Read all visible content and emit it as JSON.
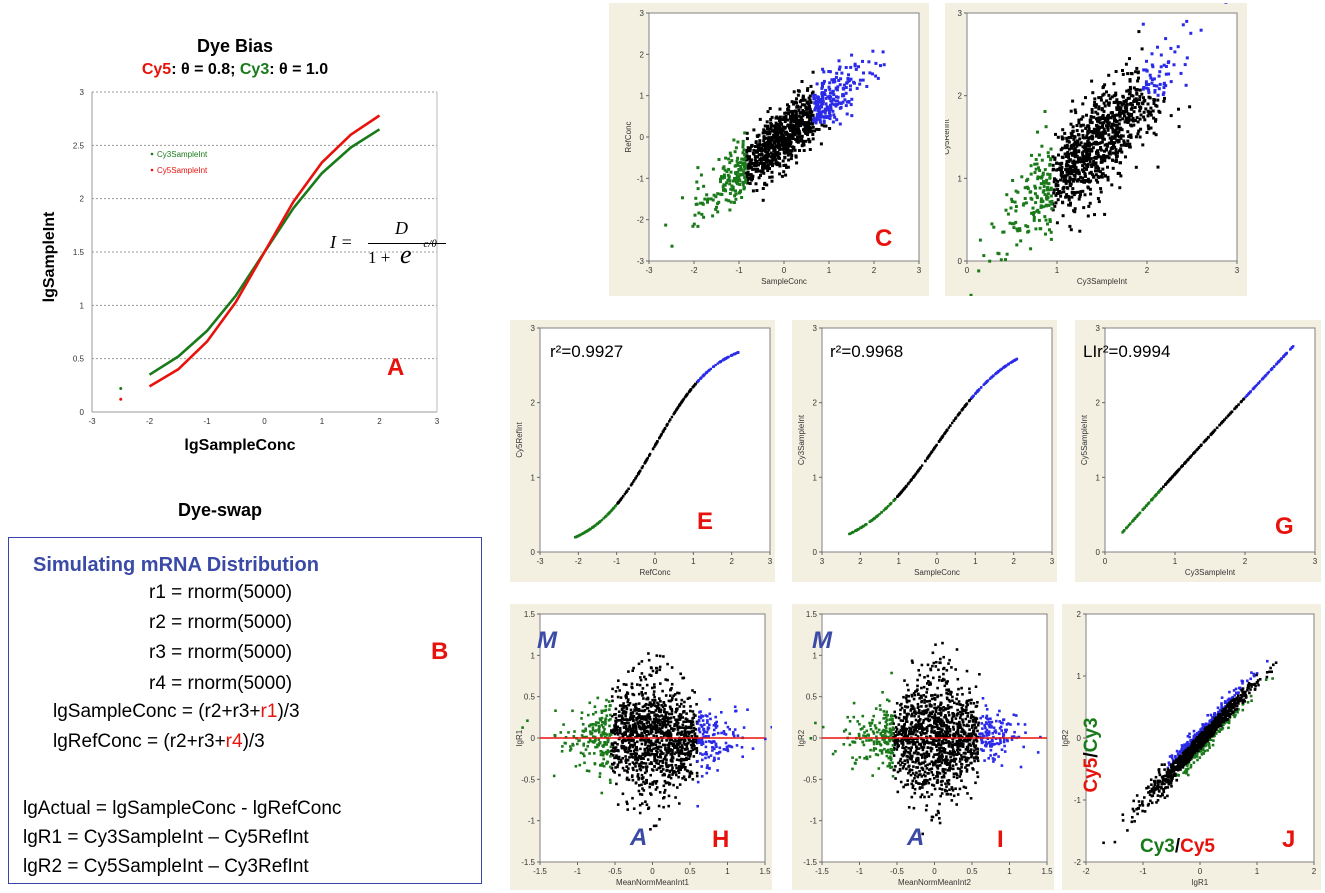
{
  "colors": {
    "cy3_green": "#1a7a1a",
    "cy5_red": "#e8120c",
    "blue": "#2a2ae8",
    "black": "#000000",
    "panel_bg": "#f4f0e1",
    "title_blue": "#3a4aa6"
  },
  "panelA": {
    "title": "Dye Bias",
    "subtitle": {
      "cy5": "Cy5",
      "cy5_theta": ": θ = 0.8; ",
      "cy3": "Cy3",
      "cy3_theta": ": θ = 1.0"
    },
    "ylabel": "lgSampleInt",
    "xlabel": "lgSampleConc",
    "letter": "A",
    "legend": [
      "Cy3SampleInt",
      "Cy5SampleInt"
    ],
    "formula": {
      "lhs": "I =",
      "num": "D",
      "den_left": "1 + ",
      "den_e": "e",
      "den_exp": "−c/θ"
    }
  },
  "panelB": {
    "heading": "Dye-swap",
    "title": "Simulating mRNA Distribution",
    "letter": "B",
    "r_lines": [
      "r1 = rnorm(5000)",
      "r2 = rnorm(5000)",
      "r3 = rnorm(5000)",
      "r4 = rnorm(5000)"
    ],
    "sample_pre": "lgSampleConc = (r2+r3+",
    "sample_red": "r1",
    "sample_post": ")/3",
    "ref_pre": "lgRefConc = (r2+r3+",
    "ref_red": "r4",
    "ref_post": ")/3",
    "lines": [
      "lgActual = lgSampleConc - lgRefConc",
      "lgR1 = Cy3SampleInt – Cy5RefInt",
      "lgR2 = Cy5SampleInt – Cy3RefInt"
    ]
  },
  "labels": {
    "C": "C",
    "E": "E",
    "G": "G",
    "H": "H",
    "I": "I",
    "J": "J",
    "r2_E": "r²=0.9927",
    "r2_F": "r²=0.9968",
    "r2_G": "LIr²=0.9994",
    "M": "M",
    "A": "A",
    "J_y_cy5": "Cy5",
    "J_y_slash": "/",
    "J_y_cy3": "Cy3",
    "J_x_cy3": "Cy3",
    "J_x_slash": "/",
    "J_x_cy5": "Cy5"
  },
  "chart_data": [
    {
      "id": "A",
      "type": "line",
      "title": "Dye Bias",
      "xlabel": "lgSampleConc",
      "ylabel": "lgSampleInt",
      "xlim": [
        -3,
        3
      ],
      "ylim": [
        0,
        3
      ],
      "xticks": [
        "-3",
        "-2",
        "-1",
        "0",
        "1",
        "2",
        "3"
      ],
      "yticks": [
        "0",
        "0.5",
        "1",
        "1.5",
        "2",
        "2.5",
        "3"
      ],
      "series": [
        {
          "name": "Cy3SampleInt",
          "x": [
            -2.5,
            -2,
            -1.5,
            -1,
            -0.5,
            0,
            0.5,
            1,
            1.5,
            2
          ],
          "y": [
            0.22,
            0.35,
            0.52,
            0.76,
            1.09,
            1.5,
            1.91,
            2.24,
            2.48,
            2.65
          ]
        },
        {
          "name": "Cy5SampleInt",
          "x": [
            -2.5,
            -2,
            -1.5,
            -1,
            -0.5,
            0,
            0.5,
            1,
            1.5,
            2
          ],
          "y": [
            0.12,
            0.24,
            0.4,
            0.66,
            1.03,
            1.5,
            1.97,
            2.34,
            2.6,
            2.78
          ]
        }
      ]
    },
    {
      "id": "C",
      "type": "scatter",
      "xlabel": "SampleConc",
      "ylabel": "RefConc",
      "xlim": [
        -3,
        3
      ],
      "ylim": [
        -3,
        3
      ],
      "xticks": [
        "-3",
        "-2",
        "-1",
        "0",
        "1",
        "2",
        "3"
      ],
      "yticks": [
        "-3",
        "-2",
        "-1",
        "0",
        "1",
        "2",
        "3"
      ]
    },
    {
      "id": "D",
      "type": "scatter",
      "xlabel": "Cy3SampleInt",
      "ylabel": "Cy5RefInt",
      "xlim": [
        0,
        3
      ],
      "ylim": [
        0,
        3
      ],
      "xticks": [
        "0",
        "1",
        "2",
        "3"
      ],
      "yticks": [
        "0",
        "1",
        "2",
        "3"
      ]
    },
    {
      "id": "E",
      "type": "scatter",
      "xlabel": "RefConc",
      "ylabel": "Cy5RefInt",
      "xlim": [
        -3,
        3
      ],
      "ylim": [
        0,
        3
      ],
      "xticks": [
        "-3",
        "-2",
        "-1",
        "0",
        "1",
        "2",
        "3"
      ],
      "yticks": [
        "0",
        "1",
        "2",
        "3"
      ],
      "r2": 0.9927
    },
    {
      "id": "F",
      "type": "scatter",
      "xlabel": "SampleConc",
      "ylabel": "Cy3SampleInt",
      "xlim": [
        -3,
        3
      ],
      "ylim": [
        0,
        3
      ],
      "xticks": [
        "3",
        "2",
        "1",
        "0",
        "1",
        "2",
        "3"
      ],
      "yticks": [
        "0",
        "1",
        "2",
        "3"
      ],
      "r2": 0.9968
    },
    {
      "id": "G",
      "type": "scatter",
      "xlabel": "Cy3SampleInt",
      "ylabel": "Cy5SampleInt",
      "xlim": [
        0,
        3
      ],
      "ylim": [
        0,
        3
      ],
      "xticks": [
        "0",
        "1",
        "2",
        "3"
      ],
      "yticks": [
        "0",
        "1",
        "2",
        "3"
      ],
      "r2": 0.9994
    },
    {
      "id": "H",
      "type": "scatter",
      "xlabel": "MeanNormMeanInt1",
      "ylabel": "lgR1",
      "xlim": [
        -1.5,
        1.5
      ],
      "ylim": [
        -1.5,
        1.5
      ],
      "xticks": [
        "-1.5",
        "-1",
        "-0.5",
        "0",
        "0.5",
        "1",
        "1.5"
      ],
      "yticks": [
        "-1.5",
        "-1",
        "-0.5",
        "0",
        "0.5",
        "1",
        "1.5"
      ]
    },
    {
      "id": "I",
      "type": "scatter",
      "xlabel": "MeanNormMeanInt2",
      "ylabel": "lgR2",
      "xlim": [
        -1.5,
        1.5
      ],
      "ylim": [
        -1.5,
        1.5
      ],
      "xticks": [
        "-1.5",
        "-1",
        "-0.5",
        "0",
        "0.5",
        "1",
        "1.5"
      ],
      "yticks": [
        "-1.5",
        "-1",
        "-0.5",
        "0",
        "0.5",
        "1",
        "1.5"
      ]
    },
    {
      "id": "J",
      "type": "scatter",
      "xlabel": "lgR1",
      "ylabel": "lgR2",
      "xlim": [
        -2,
        2
      ],
      "ylim": [
        -2,
        2
      ],
      "xticks": [
        "-2",
        "-1",
        "0",
        "1",
        "2"
      ],
      "yticks": [
        "-2",
        "-1",
        "0",
        "1",
        "2"
      ]
    }
  ]
}
